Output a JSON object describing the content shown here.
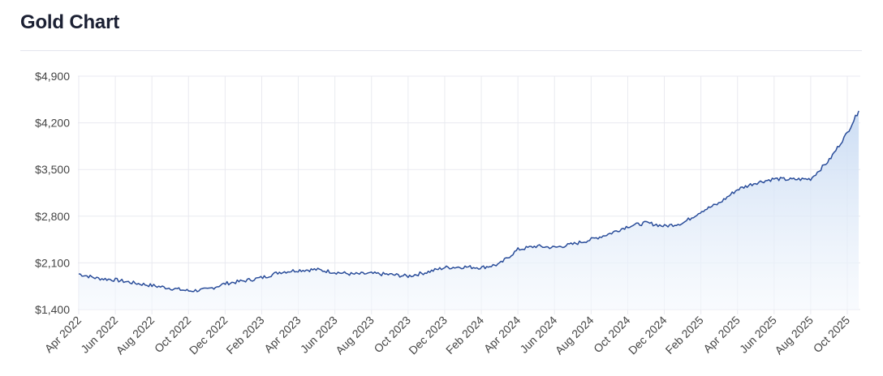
{
  "page": {
    "title": "Gold Chart"
  },
  "colors": {
    "line": "#2a4d9a",
    "fill_top": "#c9dbf3",
    "fill_bottom": "#f4f8fd",
    "grid": "#e9eaf0",
    "text": "#444444"
  },
  "chart_data": {
    "type": "area",
    "title": "Gold Chart",
    "xlabel": "",
    "ylabel": "",
    "ylim": [
      1400,
      4900
    ],
    "y_ticks": [
      1400,
      2100,
      2800,
      3500,
      4200,
      4900
    ],
    "y_tick_labels": [
      "$1,400",
      "$2,100",
      "$2,800",
      "$3,500",
      "$4,200",
      "$4,900"
    ],
    "x_tick_labels": [
      "Apr 2022",
      "Jun 2022",
      "Aug 2022",
      "Oct 2022",
      "Dec 2022",
      "Feb 2023",
      "Apr 2023",
      "Jun 2023",
      "Aug 2023",
      "Oct 2023",
      "Dec 2023",
      "Feb 2024",
      "Apr 2024",
      "Jun 2024",
      "Aug 2024",
      "Oct 2024",
      "Dec 2024",
      "Feb 2025",
      "Apr 2025",
      "Jun 2025",
      "Aug 2025",
      "Oct 2025"
    ],
    "grid": true,
    "x": [
      "2022-04-01",
      "2022-05-01",
      "2022-06-01",
      "2022-07-01",
      "2022-08-01",
      "2022-09-01",
      "2022-10-01",
      "2022-11-01",
      "2022-12-01",
      "2023-01-01",
      "2023-02-01",
      "2023-03-01",
      "2023-04-01",
      "2023-05-01",
      "2023-06-01",
      "2023-07-01",
      "2023-08-01",
      "2023-09-01",
      "2023-10-01",
      "2023-11-01",
      "2023-12-01",
      "2024-01-01",
      "2024-02-01",
      "2024-03-01",
      "2024-04-01",
      "2024-05-01",
      "2024-06-01",
      "2024-07-01",
      "2024-08-01",
      "2024-09-01",
      "2024-10-01",
      "2024-11-01",
      "2024-12-01",
      "2025-01-01",
      "2025-02-01",
      "2025-03-01",
      "2025-04-01",
      "2025-05-01",
      "2025-06-01",
      "2025-07-01",
      "2025-08-01",
      "2025-09-01",
      "2025-10-01",
      "2025-10-20"
    ],
    "series": [
      {
        "values": [
          1935,
          1870,
          1845,
          1800,
          1760,
          1720,
          1680,
          1700,
          1790,
          1830,
          1880,
          1960,
          1990,
          2000,
          1960,
          1930,
          1940,
          1925,
          1900,
          1960,
          2030,
          2040,
          2030,
          2080,
          2300,
          2350,
          2330,
          2380,
          2450,
          2540,
          2650,
          2700,
          2650,
          2700,
          2880,
          2990,
          3200,
          3300,
          3360,
          3350,
          3360,
          3640,
          4050,
          4380
        ]
      }
    ]
  }
}
